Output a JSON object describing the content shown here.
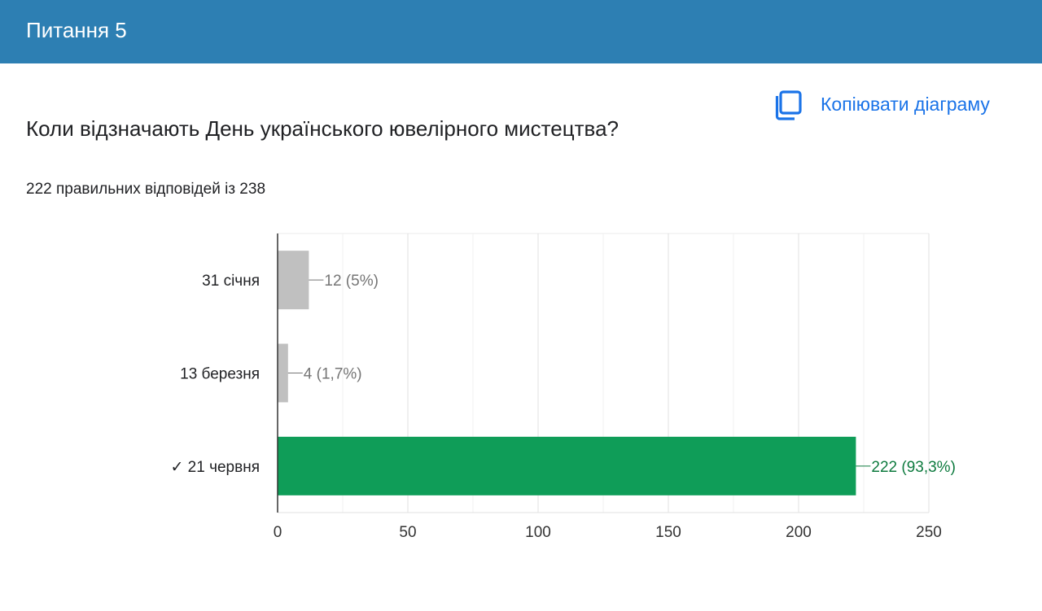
{
  "header": {
    "title": "Питання 5",
    "bg_color": "#2d7fb3"
  },
  "copy_button": {
    "label": "Копіювати діаграму",
    "icon": "copy-icon",
    "color": "#1a73e8"
  },
  "question": {
    "text": "Коли відзначають День українського ювелірного мистецтва?"
  },
  "score": {
    "text": "222 правильних відповідей із 238"
  },
  "chart_data": {
    "type": "bar",
    "orientation": "horizontal",
    "categories": [
      "31 січня",
      "13 березня",
      "✓ 21 червня"
    ],
    "values": [
      12,
      4,
      222
    ],
    "value_labels": [
      "12 (5%)",
      "4 (1,7%)",
      "222 (93,3%)"
    ],
    "bar_colors": [
      "#c0c0c0",
      "#c0c0c0",
      "#0f9d58"
    ],
    "label_colors": [
      "#757575",
      "#757575",
      "#0d7a3e"
    ],
    "xlim": [
      0,
      250
    ],
    "xticks": [
      0,
      50,
      100,
      150,
      200,
      250
    ],
    "grid": true
  }
}
